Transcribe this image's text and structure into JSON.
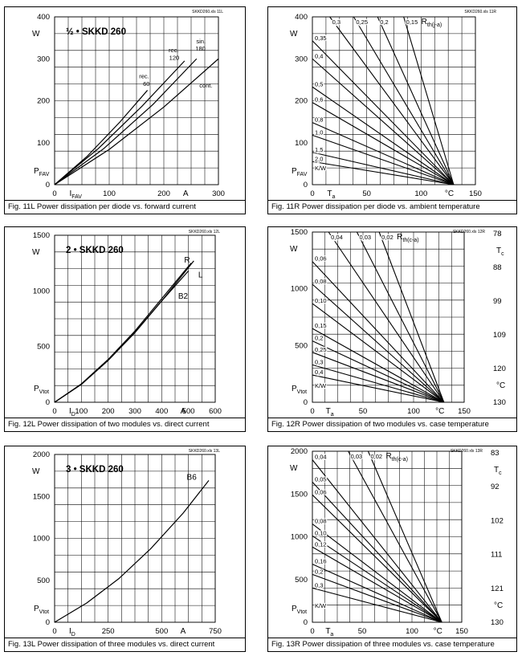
{
  "panels": [
    {
      "id": "11L",
      "source": "SKKD260.xls 11L",
      "caption": "Fig. 11L Power dissipation per diode vs. forward current",
      "title": "½ • SKKD 260",
      "y_unit": "W",
      "y_axis": "P_FAV",
      "x_axis": "I_FAV",
      "x_unit": "A",
      "chart_data": {
        "type": "line",
        "xlim": [
          0,
          300
        ],
        "ylim": [
          0,
          400
        ],
        "xticks": [
          "0",
          "100",
          "200",
          "300"
        ],
        "yticks": [
          "0",
          "100",
          "200",
          "300",
          "400"
        ],
        "series": [
          {
            "name": "rec. 60",
            "x": [
              0,
              60,
              120,
              170
            ],
            "y": [
              0,
              68,
              150,
              225
            ]
          },
          {
            "name": "rec. 120",
            "x": [
              0,
              80,
              160,
              238
            ],
            "y": [
              0,
              86,
              187,
              295
            ]
          },
          {
            "name": "sin. 180",
            "x": [
              0,
              90,
              180,
              260
            ],
            "y": [
              0,
              86,
              191,
              300
            ]
          },
          {
            "name": "cont.",
            "x": [
              0,
              100,
              200,
              300
            ],
            "y": [
              0,
              84,
              185,
              300
            ]
          }
        ],
        "annotations": [
          {
            "text": "rec.",
            "x": 164,
            "y": 254
          },
          {
            "text": "60",
            "x": 168,
            "y": 235
          },
          {
            "text": "rec.",
            "x": 218,
            "y": 316
          },
          {
            "text": "120",
            "x": 219,
            "y": 298
          },
          {
            "text": "sin.",
            "x": 268,
            "y": 337
          },
          {
            "text": "180",
            "x": 267,
            "y": 320
          },
          {
            "text": "cont.",
            "x": 277,
            "y": 232
          }
        ]
      }
    },
    {
      "id": "11R",
      "source": "SKKD260.xls 11R",
      "caption": "Fig. 11R Power dissipation per diode vs. ambient temperature",
      "y_unit": "W",
      "y_axis": "P_FAV",
      "x_axis": "T_a",
      "x_unit": "°C",
      "rth_label": "R_th(j-a)",
      "kw_label": "K/W",
      "chart_data": {
        "type": "line",
        "xlim": [
          0,
          150
        ],
        "ylim": [
          0,
          400
        ],
        "xticks": [
          "0",
          "50",
          "100",
          "150"
        ],
        "yticks": [
          "0",
          "100",
          "200",
          "300",
          "400"
        ],
        "convergence": {
          "x": 130,
          "y": 0
        },
        "rth_top": [
          "0,3",
          "0,25",
          "0,2",
          "0,15"
        ],
        "rth_top_x": [
          16,
          38,
          60,
          84
        ],
        "rth_left": [
          "0,35",
          "0,4",
          "0,5",
          "0,6",
          "0,8",
          "1,0",
          "1,5",
          "2,0"
        ],
        "rth_left_y": [
          343,
          300,
          233,
          196,
          148,
          118,
          77,
          55
        ]
      }
    },
    {
      "id": "12L",
      "source": "SKKD260.xls 12L",
      "caption": "Fig. 12L Power dissipation of two modules vs. direct current",
      "title": "2 • SKKD 260",
      "y_unit": "W",
      "y_axis": "P_Vtot",
      "x_axis": "I_D",
      "x_unit": "A",
      "chart_data": {
        "type": "line",
        "xlim": [
          0,
          600
        ],
        "ylim": [
          0,
          1500
        ],
        "xticks": [
          "0",
          "100",
          "200",
          "300",
          "400",
          "500",
          "600"
        ],
        "yticks": [
          "0",
          "500",
          "1000",
          "1500"
        ],
        "series": [
          {
            "name": "R",
            "x": [
              0,
              100,
              200,
              300,
              400,
              510
            ],
            "y": [
              0,
              165,
              385,
              640,
              930,
              1250
            ]
          },
          {
            "name": "L",
            "x": [
              0,
              100,
              200,
              300,
              400,
              520
            ],
            "y": [
              0,
              160,
              375,
              625,
              910,
              1270
            ]
          },
          {
            "name": "B2",
            "x": [
              0,
              100,
              200,
              300,
              400,
              500
            ],
            "y": [
              0,
              162,
              380,
              628,
              910,
              1180
            ]
          }
        ],
        "annotations": [
          {
            "text": "R",
            "x": 495,
            "y": 1255
          },
          {
            "text": "L",
            "x": 545,
            "y": 1120
          },
          {
            "text": "B2",
            "x": 480,
            "y": 930
          }
        ]
      }
    },
    {
      "id": "12R",
      "source": "SKKD260.xls 12R",
      "caption": "Fig. 12R Power dissipation of two modules vs. case temperature",
      "y_unit": "W",
      "y_axis": "P_Vtot",
      "x_axis": "T_a",
      "x_unit": "°C",
      "rth_label": "R_th(c-a)",
      "kw_label": "K/W",
      "right_label": "T_c",
      "right_unit": "°C",
      "chart_data": {
        "type": "line",
        "xlim": [
          0,
          150
        ],
        "ylim": [
          0,
          1500
        ],
        "xticks": [
          "0",
          "50",
          "100",
          "150"
        ],
        "yticks": [
          "0",
          "500",
          "1000",
          "1500"
        ],
        "right_ticks": [
          "78",
          "88",
          "99",
          "109",
          "120",
          "130"
        ],
        "convergence": {
          "x": 130,
          "y": 0
        },
        "rth_top": [
          "0,04",
          "0,03",
          "0,02"
        ],
        "rth_top_x": [
          16,
          44,
          66
        ],
        "rth_left": [
          "0,06",
          "0,08",
          "0,10",
          "0,15",
          "0,2",
          "0,25",
          "0,3",
          "0,4"
        ],
        "rth_left_y": [
          1240,
          1040,
          870,
          650,
          540,
          440,
          330,
          240
        ]
      }
    },
    {
      "id": "13L",
      "source": "SKKD260.xls 13L",
      "caption": "Fig. 13L Power dissipation of three modules vs. direct current",
      "title": "3 • SKKD 260",
      "y_unit": "W",
      "y_axis": "P_Vtot",
      "x_axis": "I_D",
      "x_unit": "A",
      "chart_data": {
        "type": "line",
        "xlim": [
          0,
          750
        ],
        "ylim": [
          0,
          2000
        ],
        "xticks": [
          "0",
          "250",
          "500",
          "750"
        ],
        "yticks": [
          "0",
          "500",
          "1000",
          "1500",
          "2000"
        ],
        "series": [
          {
            "name": "B6",
            "x": [
              0,
              150,
              300,
              450,
              600,
              720
            ],
            "y": [
              0,
              230,
              520,
              880,
              1300,
              1690
            ]
          }
        ],
        "annotations": [
          {
            "text": "B6",
            "x": 640,
            "y": 1700
          }
        ]
      }
    },
    {
      "id": "13R",
      "source": "SKKD260.xls 13R",
      "caption": "Fig. 13R Power dissipation of three modules vs. case temperature",
      "y_unit": "W",
      "y_axis": "P_Vtot",
      "x_axis": "T_a",
      "x_unit": "°C",
      "rth_label": "R_th(c-a)",
      "kw_label": "K/W",
      "right_label": "T_c",
      "right_unit": "°C",
      "chart_data": {
        "type": "line",
        "xlim": [
          0,
          150
        ],
        "ylim": [
          0,
          2000
        ],
        "xticks": [
          "0",
          "50",
          "100",
          "150"
        ],
        "yticks": [
          "0",
          "500",
          "1000",
          "1500",
          "2000"
        ],
        "right_ticks": [
          "83",
          "92",
          "102",
          "111",
          "121",
          "130"
        ],
        "convergence": {
          "x": 130,
          "y": 0
        },
        "rth_top": [
          "0,03",
          "0,02"
        ],
        "rth_top_x": [
          36,
          56
        ],
        "rth_left": [
          "0,04",
          "0,05",
          "0,06",
          "0,08",
          "0,10",
          "0,12",
          "0,16",
          "0,2",
          "0,3"
        ],
        "rth_left_y": [
          1900,
          1640,
          1490,
          1150,
          1010,
          880,
          680,
          560,
          400
        ]
      }
    }
  ]
}
